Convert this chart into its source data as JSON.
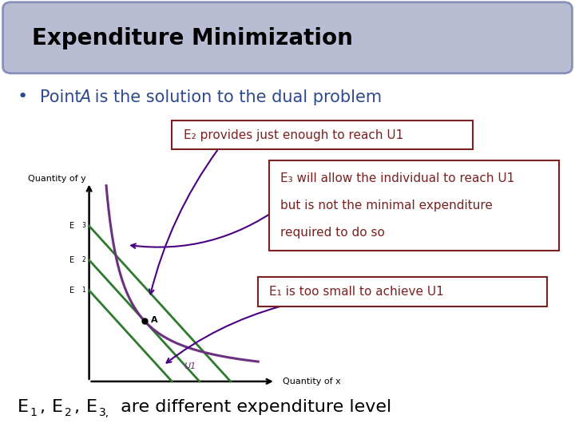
{
  "title": "Expenditure Minimization",
  "title_bg": "#b8bdd4",
  "title_border": "#8890b8",
  "bullet_text_pre": "Point ",
  "bullet_italic": "A",
  "bullet_text_post": " is the solution to the dual problem",
  "bullet_color": "#2e4a8c",
  "bg_color": "#ffffff",
  "box1_text": "E₂ provides just enough to reach U1",
  "box2_line1": "E₃ will allow the individual to reach U1",
  "box2_line2": "but is not the minimal expenditure",
  "box2_line3": "required to do so",
  "box3_text": "E₁ is too small to achieve U1",
  "box_border_color": "#7b2020",
  "box_fill": "#ffffff",
  "green_color": "#2d7a2d",
  "purple_color": "#6b3080",
  "dark_purple": "#4b0082",
  "axis_label_x": "Quantity of x",
  "axis_label_y": "Quantity of y",
  "bottom_E_color": "#000000",
  "bottom_suffix": " are different expenditure level"
}
